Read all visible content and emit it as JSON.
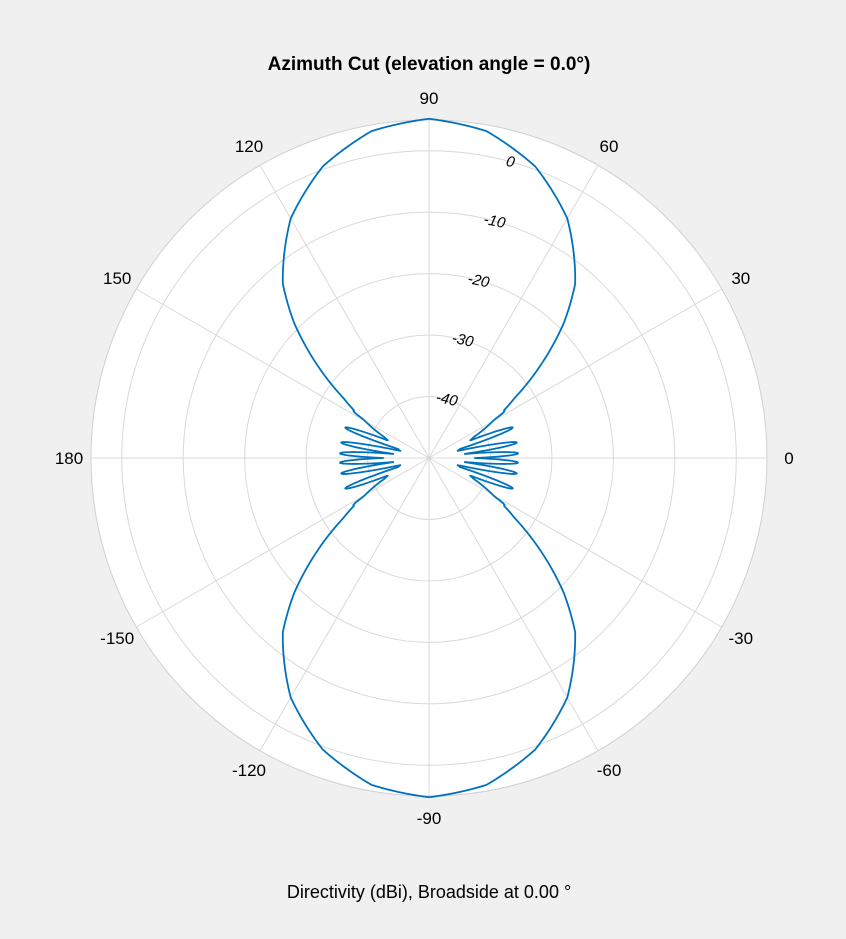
{
  "chart_data": {
    "type": "line",
    "subtype": "polar",
    "title": "Azimuth Cut (elevation angle = 0.0°)",
    "xlabel": "Directivity (dBi), Broadside at 0.00 °",
    "angle_ticks": [
      0,
      30,
      60,
      90,
      120,
      150,
      180,
      -150,
      -120,
      -90,
      -60,
      -30
    ],
    "radial_ticks": [
      0,
      -10,
      -20,
      -30,
      -40
    ],
    "rlim": [
      -50,
      5
    ],
    "tick_label_angle_deg": 75,
    "grid": true,
    "line_color": "#0072bd",
    "series": [
      {
        "angles_deg": [
          90,
          80,
          70,
          60,
          50,
          45,
          40,
          35,
          30,
          25,
          20,
          15,
          10,
          5,
          0
        ],
        "peak_dbi": 5.2,
        "main_lobe_dbi": [
          5.2,
          4.0,
          0.5,
          -5.0,
          -13.0,
          -19.0,
          -26.0,
          -33.0,
          -38.0,
          -42.0,
          -44.0,
          -45.0,
          -46.0,
          -47.0,
          -48.0
        ],
        "side_lobe_count_per_quadrant": 4,
        "side_lobe_level_dbi": -35.5,
        "side_lobe_angles_deg": [
          3,
          10,
          20,
          32
        ]
      }
    ]
  }
}
